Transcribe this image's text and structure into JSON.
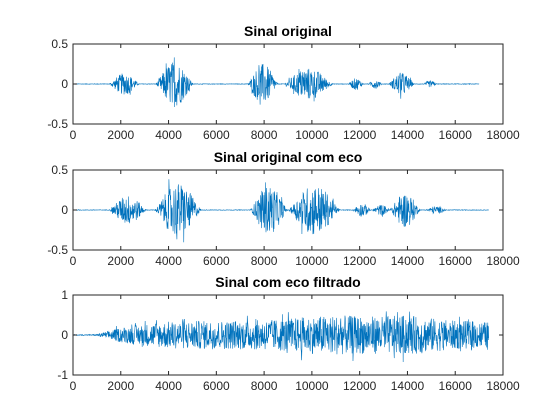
{
  "chart_data": [
    {
      "type": "line",
      "title": "Sinal original",
      "xlabel": "",
      "ylabel": "",
      "xlim": [
        0,
        18000
      ],
      "ylim": [
        -0.5,
        0.5
      ],
      "xticks": [
        "0",
        "2000",
        "4000",
        "6000",
        "8000",
        "10000",
        "12000",
        "14000",
        "16000",
        "18000"
      ],
      "yticks": [
        "-0.5",
        "0",
        "0.5"
      ],
      "grid": false,
      "color": "#0072BD",
      "signal_length": 17000,
      "series": [
        {
          "x_start": 0,
          "x_end": 17000,
          "bursts": [
            {
              "center": 2150,
              "halfwidth": 650,
              "amp": 0.16
            },
            {
              "center": 4250,
              "halfwidth": 800,
              "amp": 0.34
            },
            {
              "center": 7950,
              "halfwidth": 650,
              "amp": 0.3
            },
            {
              "center": 9850,
              "halfwidth": 1050,
              "amp": 0.24
            },
            {
              "center": 11850,
              "halfwidth": 330,
              "amp": 0.09
            },
            {
              "center": 12650,
              "halfwidth": 300,
              "amp": 0.07
            },
            {
              "center": 13750,
              "halfwidth": 550,
              "amp": 0.17
            },
            {
              "center": 14950,
              "halfwidth": 300,
              "amp": 0.05
            }
          ]
        }
      ]
    },
    {
      "type": "line",
      "title": "Sinal original com eco",
      "xlabel": "",
      "ylabel": "",
      "xlim": [
        0,
        18000
      ],
      "ylim": [
        -0.5,
        0.5
      ],
      "xticks": [
        "0",
        "2000",
        "4000",
        "6000",
        "8000",
        "10000",
        "12000",
        "14000",
        "16000",
        "18000"
      ],
      "yticks": [
        "-0.5",
        "0",
        "0.5"
      ],
      "grid": false,
      "color": "#0072BD",
      "signal_length": 17400,
      "series": [
        {
          "x_start": 0,
          "x_end": 17400,
          "bursts": [
            {
              "center": 2300,
              "halfwidth": 800,
              "amp": 0.22
            },
            {
              "center": 4400,
              "halfwidth": 1000,
              "amp": 0.4
            },
            {
              "center": 8200,
              "halfwidth": 800,
              "amp": 0.36
            },
            {
              "center": 10100,
              "halfwidth": 1100,
              "amp": 0.38
            },
            {
              "center": 12100,
              "halfwidth": 400,
              "amp": 0.1
            },
            {
              "center": 12900,
              "halfwidth": 400,
              "amp": 0.08
            },
            {
              "center": 13900,
              "halfwidth": 650,
              "amp": 0.26
            },
            {
              "center": 15200,
              "halfwidth": 450,
              "amp": 0.06
            }
          ]
        }
      ]
    },
    {
      "type": "line",
      "title": "Sinal com eco filtrado",
      "xlabel": "",
      "ylabel": "",
      "xlim": [
        0,
        18000
      ],
      "ylim": [
        -1,
        1
      ],
      "xticks": [
        "0",
        "2000",
        "4000",
        "6000",
        "8000",
        "10000",
        "12000",
        "14000",
        "16000",
        "18000"
      ],
      "yticks": [
        "-1",
        "0",
        "1"
      ],
      "grid": false,
      "color": "#0072BD",
      "signal_length": 17400,
      "series": [
        {
          "x_start": 0,
          "x_end": 17400,
          "envelope": [
            [
              0,
              0.01
            ],
            [
              1000,
              0.02
            ],
            [
              1400,
              0.1
            ],
            [
              2000,
              0.22
            ],
            [
              3000,
              0.32
            ],
            [
              4000,
              0.4
            ],
            [
              5500,
              0.42
            ],
            [
              7000,
              0.42
            ],
            [
              8500,
              0.46
            ],
            [
              10000,
              0.55
            ],
            [
              11000,
              0.58
            ],
            [
              12000,
              0.56
            ],
            [
              13000,
              0.55
            ],
            [
              14000,
              0.58
            ],
            [
              15000,
              0.5
            ],
            [
              16000,
              0.42
            ],
            [
              17000,
              0.4
            ],
            [
              17400,
              0.38
            ]
          ]
        }
      ]
    }
  ]
}
